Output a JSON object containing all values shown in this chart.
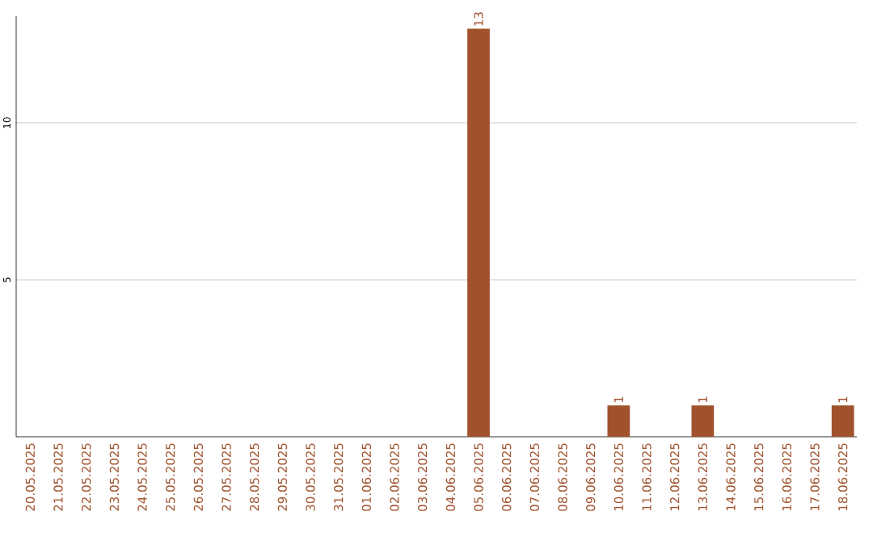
{
  "chart_data": {
    "type": "bar",
    "categories": [
      "20.05.2025",
      "21.05.2025",
      "22.05.2025",
      "23.05.2025",
      "24.05.2025",
      "25.05.2025",
      "26.05.2025",
      "27.05.2025",
      "28.05.2025",
      "29.05.2025",
      "30.05.2025",
      "31.05.2025",
      "01.06.2025",
      "02.06.2025",
      "03.06.2025",
      "04.06.2025",
      "05.06.2025",
      "06.06.2025",
      "07.06.2025",
      "08.06.2025",
      "09.06.2025",
      "10.06.2025",
      "11.06.2025",
      "12.06.2025",
      "13.06.2025",
      "14.06.2025",
      "15.06.2025",
      "16.06.2025",
      "17.06.2025",
      "18.06.2025"
    ],
    "values": [
      0,
      0,
      0,
      0,
      0,
      0,
      0,
      0,
      0,
      0,
      0,
      0,
      0,
      0,
      0,
      0,
      13,
      0,
      0,
      0,
      0,
      1,
      0,
      0,
      1,
      0,
      0,
      0,
      0,
      1
    ],
    "value_labels": [
      null,
      null,
      null,
      null,
      null,
      null,
      null,
      null,
      null,
      null,
      null,
      null,
      null,
      null,
      null,
      null,
      "13",
      null,
      null,
      null,
      null,
      "1",
      null,
      null,
      "1",
      null,
      null,
      null,
      null,
      "1"
    ],
    "color": "#a0522d",
    "ylim": [
      0,
      13.4
    ],
    "yticks": [
      5,
      10
    ],
    "grid": "y"
  }
}
